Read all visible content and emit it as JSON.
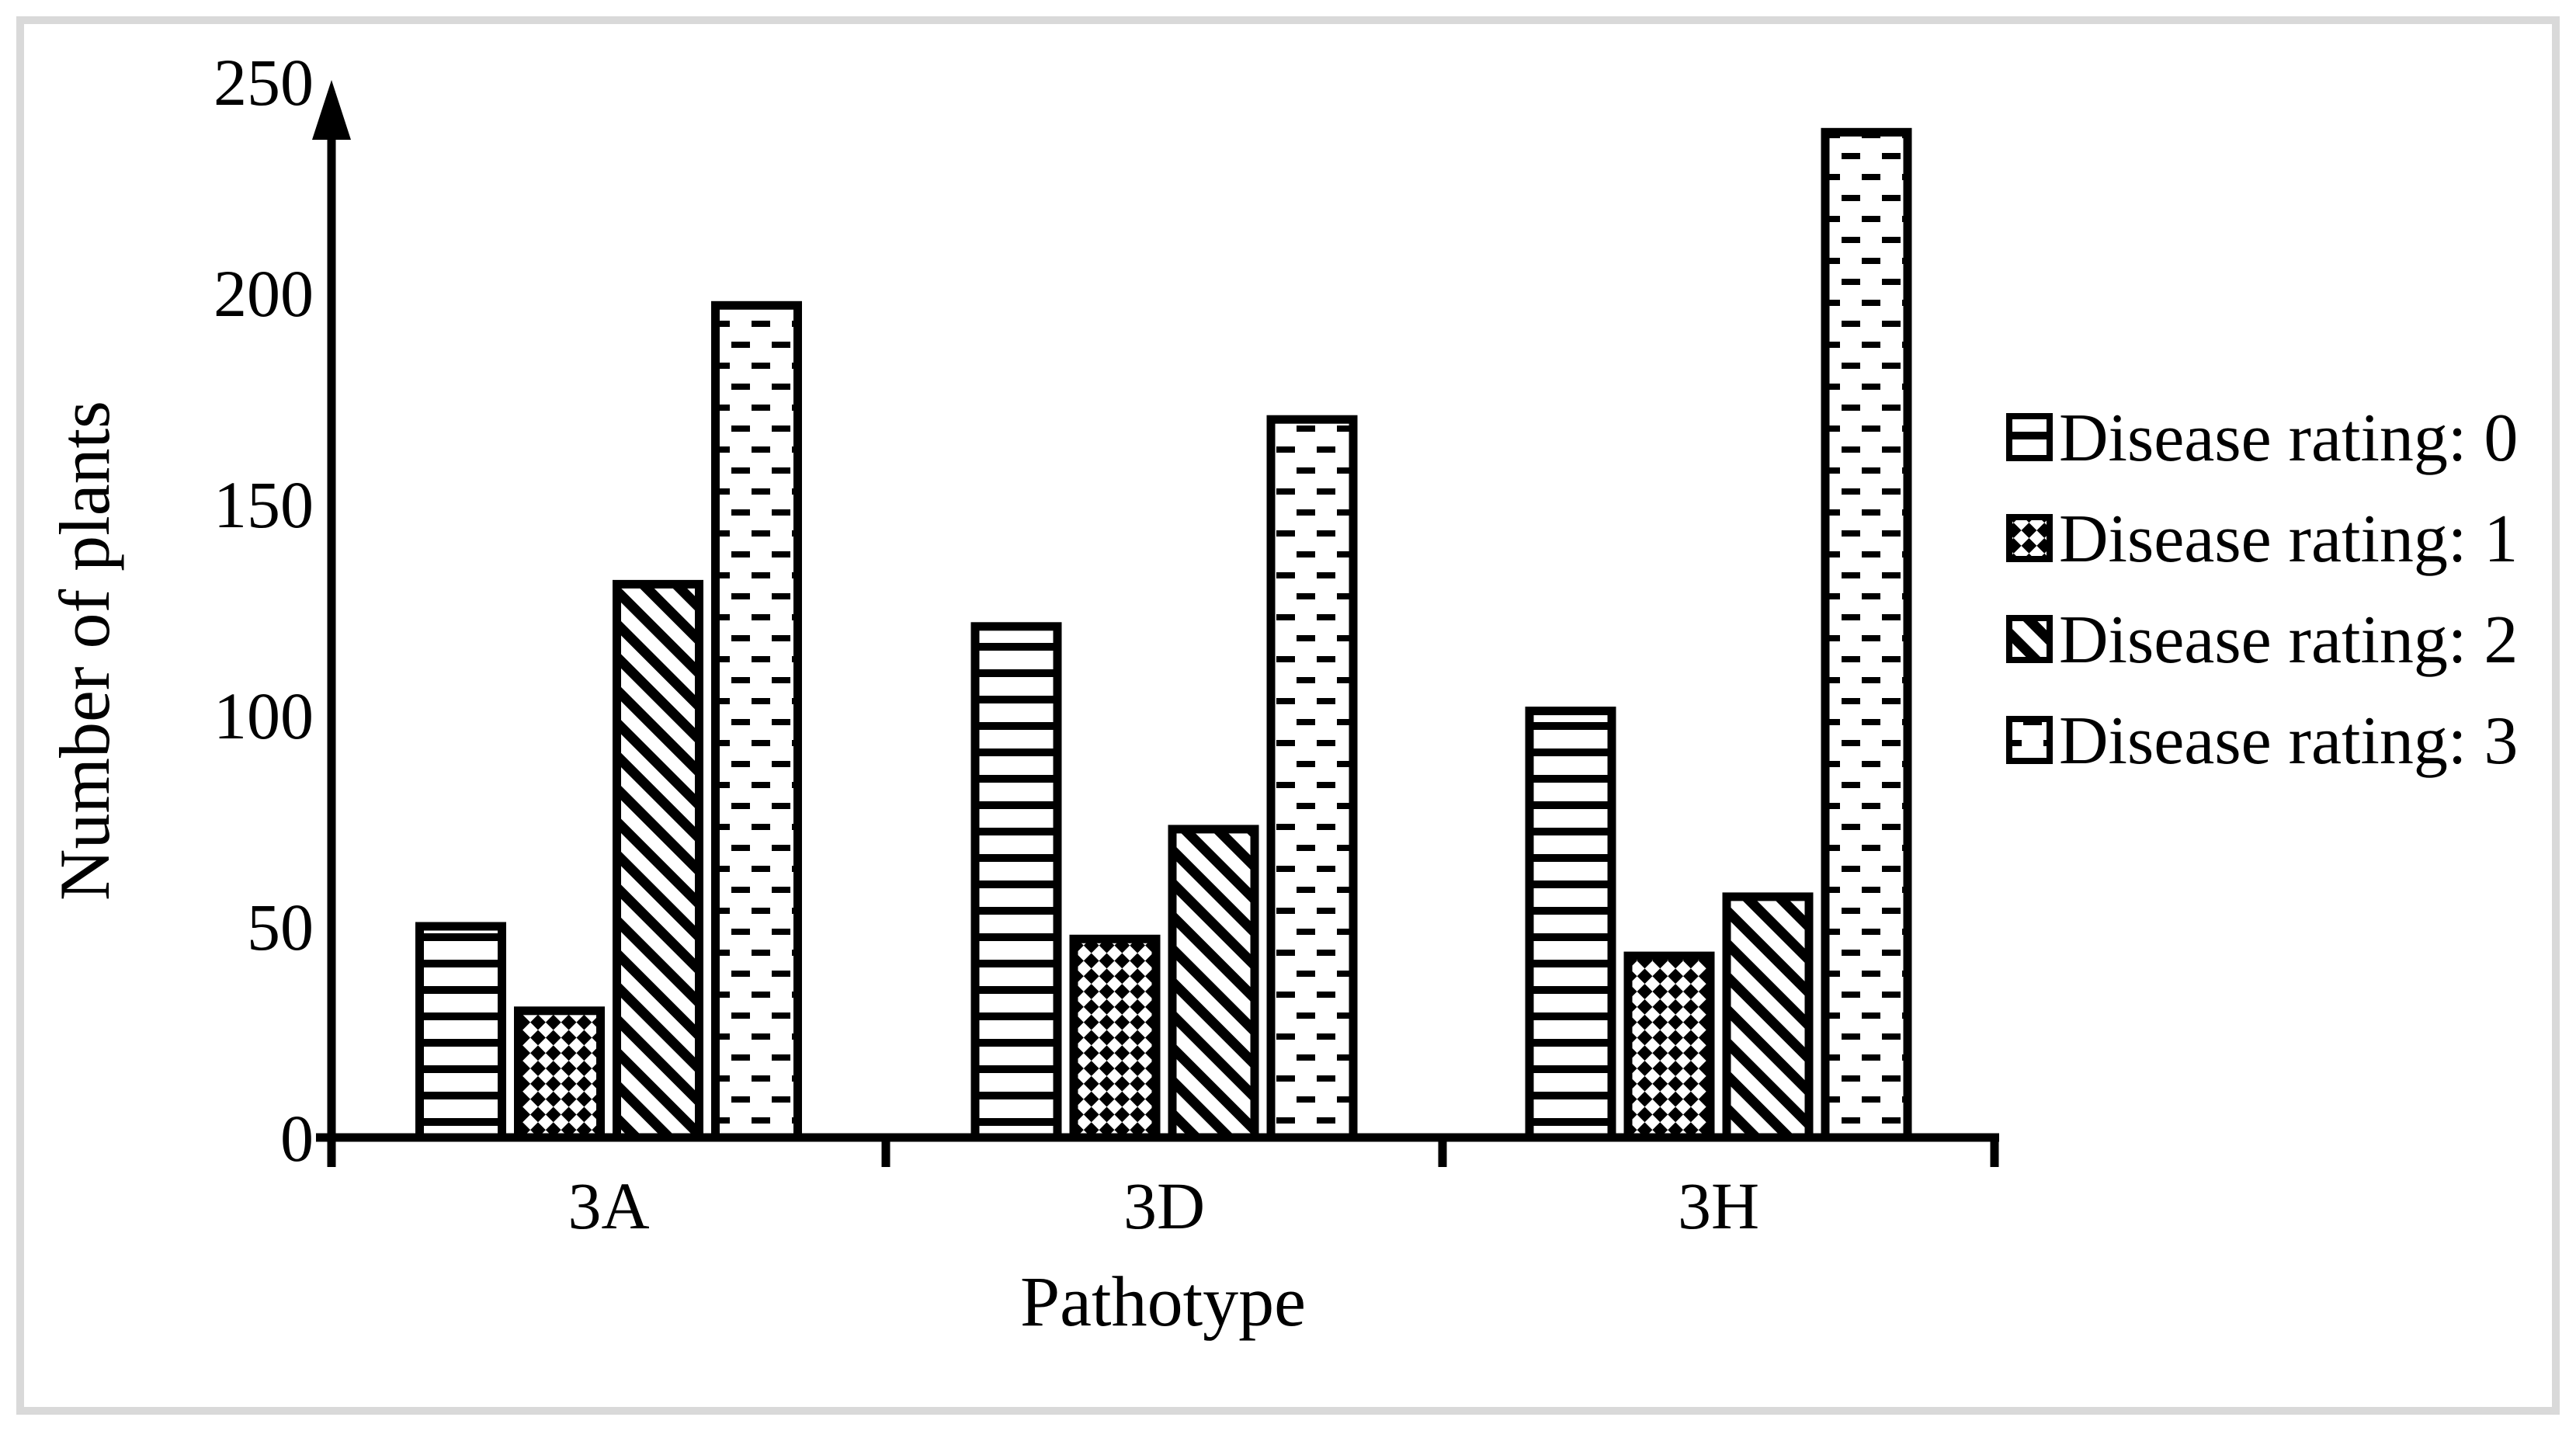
{
  "figure": {
    "background": "#ffffff",
    "frame_color": "#d9d9d9",
    "ink_color": "#000000"
  },
  "chart_data": {
    "type": "bar",
    "title": "",
    "xlabel": "Pathotype",
    "ylabel": "Number of plants",
    "categories": [
      "3A",
      "3D",
      "3H"
    ],
    "series": [
      {
        "name": "Disease rating: 0",
        "pattern": "horizontal-lines",
        "values": [
          50,
          121,
          101
        ]
      },
      {
        "name": "Disease rating: 1",
        "pattern": "diamond-checker",
        "values": [
          30,
          47,
          43
        ]
      },
      {
        "name": "Disease rating: 2",
        "pattern": "diagonal-stripes",
        "values": [
          131,
          73,
          57
        ]
      },
      {
        "name": "Disease rating: 3",
        "pattern": "offset-dashes",
        "values": [
          197,
          170,
          238
        ]
      }
    ],
    "y_axis": {
      "min": 0,
      "max": 250,
      "tick_step": 50,
      "tick_labels": [
        "0",
        "50",
        "100",
        "150",
        "200",
        "250"
      ]
    },
    "x_axis": {
      "tick_labels": [
        "3A",
        "3D",
        "3H"
      ]
    },
    "legend": {
      "position": "right",
      "labels": [
        "Disease rating: 0",
        "Disease rating: 1",
        "Disease rating: 2",
        "Disease rating: 3"
      ]
    },
    "grid": "off",
    "bar_fill": "white-with-black-pattern",
    "bar_border_color": "#000000"
  }
}
